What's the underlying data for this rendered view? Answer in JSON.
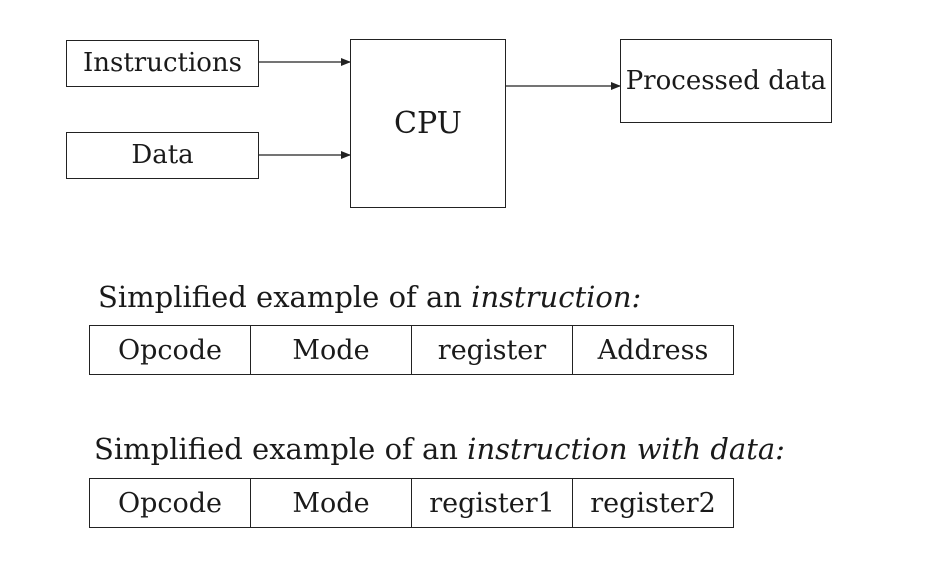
{
  "diagram": {
    "inputs": [
      "Instructions",
      "Data"
    ],
    "processor": "CPU",
    "output": "Processed data"
  },
  "examples": [
    {
      "caption_prefix": "Simplified example of an ",
      "caption_emphasis": "instruction:",
      "fields": [
        "Opcode",
        "Mode",
        "register",
        "Address"
      ]
    },
    {
      "caption_prefix": "Simplified example of an ",
      "caption_emphasis": "instruction with data:",
      "fields": [
        "Opcode",
        "Mode",
        "register1",
        "register2"
      ]
    }
  ]
}
